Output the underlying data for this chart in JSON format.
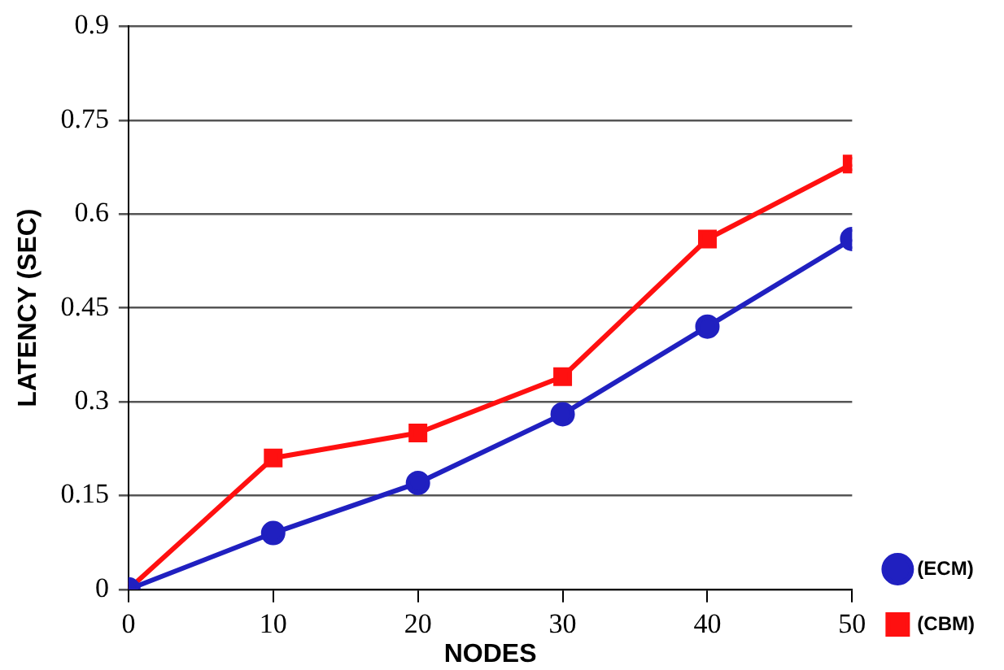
{
  "chart_data": {
    "type": "line",
    "xlabel": "NODES",
    "ylabel": "LATENCY (SEC)",
    "x": [
      0,
      10,
      20,
      30,
      40,
      50
    ],
    "series": [
      {
        "name": "(ECM)",
        "color": "#2020c0",
        "marker": "circle",
        "values": [
          0,
          0.09,
          0.17,
          0.28,
          0.42,
          0.56
        ]
      },
      {
        "name": "(CBM)",
        "color": "#ff1010",
        "marker": "square",
        "values": [
          0,
          0.21,
          0.25,
          0.34,
          0.56,
          0.68
        ]
      }
    ],
    "xlim": [
      0,
      50
    ],
    "xticks": [
      0,
      10,
      20,
      30,
      40,
      50
    ],
    "ylim": [
      0,
      0.9
    ],
    "yticks": [
      0,
      0.15,
      0.3,
      0.45,
      0.6,
      0.75,
      0.9
    ],
    "grid": "y",
    "legend": "bottom right",
    "line_style": "solid"
  }
}
